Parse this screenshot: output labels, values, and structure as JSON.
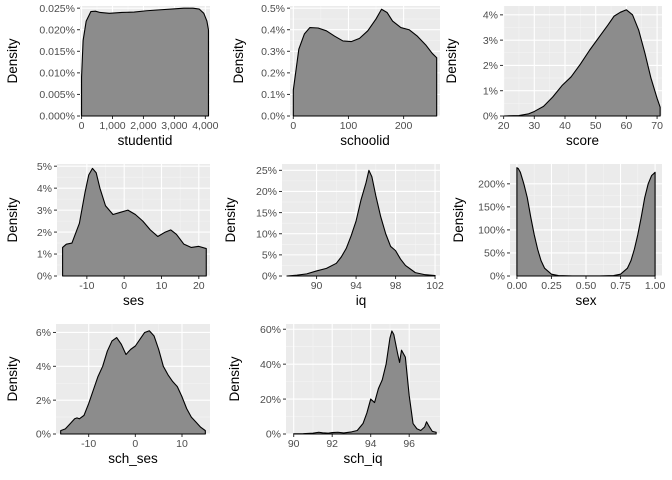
{
  "chart_data": [
    {
      "type": "area",
      "xlabel": "studentid",
      "ylabel": "Density",
      "xlim": [
        -50,
        4150
      ],
      "ylim": [
        0,
        0.000255
      ],
      "xticks": [
        0,
        1000,
        2000,
        3000,
        4000
      ],
      "xtick_labels": [
        "0",
        "1,000",
        "2,000",
        "3,000",
        "4,000"
      ],
      "yticks": [
        0,
        5e-05,
        0.0001,
        0.00015,
        0.0002,
        0.00025
      ],
      "ytick_labels": [
        "0.000%",
        "0.005%",
        "0.010%",
        "0.015%",
        "0.020%",
        "0.025%"
      ],
      "x": [
        0,
        50,
        150,
        300,
        450,
        600,
        900,
        1300,
        1700,
        2100,
        2500,
        2900,
        3300,
        3600,
        3800,
        3950,
        4050,
        4100
      ],
      "y": [
        9e-05,
        0.000175,
        0.00022,
        0.000242,
        0.000243,
        0.00024,
        0.000238,
        0.00024,
        0.000241,
        0.000244,
        0.000246,
        0.000248,
        0.00025,
        0.00025,
        0.000248,
        0.000238,
        0.00022,
        0.0002
      ]
    },
    {
      "type": "area",
      "xlabel": "schoolid",
      "ylabel": "Density",
      "xlim": [
        -6,
        266
      ],
      "ylim": [
        0,
        0.0051
      ],
      "xticks": [
        0,
        100,
        200
      ],
      "xtick_labels": [
        "0",
        "100",
        "200"
      ],
      "yticks": [
        0,
        0.001,
        0.002,
        0.003,
        0.004,
        0.005
      ],
      "ytick_labels": [
        "0.0%",
        "0.1%",
        "0.2%",
        "0.3%",
        "0.4%",
        "0.5%"
      ],
      "x": [
        0,
        10,
        20,
        30,
        45,
        60,
        75,
        90,
        105,
        120,
        135,
        150,
        160,
        170,
        180,
        195,
        210,
        225,
        240,
        252,
        260
      ],
      "y": [
        0.0012,
        0.0031,
        0.0038,
        0.0041,
        0.00408,
        0.00395,
        0.0037,
        0.00348,
        0.00345,
        0.0036,
        0.00395,
        0.0045,
        0.00495,
        0.0048,
        0.0044,
        0.0041,
        0.004,
        0.0037,
        0.0033,
        0.0029,
        0.0027
      ]
    },
    {
      "type": "area",
      "xlabel": "score",
      "ylabel": "Density",
      "xlim": [
        19.8,
        71.6
      ],
      "ylim": [
        0,
        0.0435
      ],
      "xticks": [
        20,
        30,
        40,
        50,
        60,
        70
      ],
      "xtick_labels": [
        "20",
        "30",
        "40",
        "50",
        "60",
        "70"
      ],
      "yticks": [
        0,
        0.01,
        0.02,
        0.03,
        0.04
      ],
      "ytick_labels": [
        "0%",
        "1%",
        "2%",
        "3%",
        "4%"
      ],
      "x": [
        20,
        25,
        28,
        30,
        33,
        36,
        39,
        42,
        45,
        48,
        51,
        54,
        56,
        58,
        60,
        62,
        64,
        66,
        68,
        70,
        71
      ],
      "y": [
        0,
        0.0002,
        0.0008,
        0.0018,
        0.0038,
        0.0075,
        0.012,
        0.0155,
        0.0205,
        0.026,
        0.031,
        0.036,
        0.0395,
        0.041,
        0.042,
        0.04,
        0.034,
        0.025,
        0.015,
        0.007,
        0.0035
      ]
    },
    {
      "type": "area",
      "xlabel": "ses",
      "ylabel": "Density",
      "xlim": [
        -18,
        23
      ],
      "ylim": [
        0,
        0.051
      ],
      "xticks": [
        -10,
        0,
        10,
        20
      ],
      "xtick_labels": [
        "-10",
        "0",
        "10",
        "20"
      ],
      "yticks": [
        0,
        0.01,
        0.02,
        0.03,
        0.04,
        0.05
      ],
      "ytick_labels": [
        "0%",
        "1%",
        "2%",
        "3%",
        "4%",
        "5%"
      ],
      "x": [
        -16.5,
        -15.5,
        -14,
        -12,
        -10.5,
        -9.5,
        -8.5,
        -7.5,
        -6.5,
        -5,
        -3,
        -1,
        1,
        3,
        5,
        7,
        9,
        11,
        12.5,
        14,
        16,
        18,
        20,
        22
      ],
      "y": [
        0.013,
        0.0145,
        0.015,
        0.024,
        0.038,
        0.046,
        0.049,
        0.047,
        0.04,
        0.032,
        0.028,
        0.029,
        0.03,
        0.028,
        0.025,
        0.021,
        0.018,
        0.02,
        0.021,
        0.019,
        0.0145,
        0.013,
        0.0135,
        0.0125
      ]
    },
    {
      "type": "area",
      "xlabel": "iq",
      "ylabel": "Density",
      "xlim": [
        86.5,
        102.5
      ],
      "ylim": [
        0,
        0.265
      ],
      "xticks": [
        90,
        94,
        98,
        102
      ],
      "xtick_labels": [
        "90",
        "94",
        "98",
        "102"
      ],
      "yticks": [
        0,
        0.05,
        0.1,
        0.15,
        0.2,
        0.25
      ],
      "ytick_labels": [
        "0%",
        "5%",
        "10%",
        "15%",
        "20%",
        "25%"
      ],
      "x": [
        87,
        88,
        89,
        90,
        91,
        92,
        92.5,
        93,
        93.5,
        94,
        94.5,
        95,
        95.3,
        95.6,
        96,
        96.5,
        97,
        97.5,
        98,
        98.5,
        99,
        100,
        101,
        102
      ],
      "y": [
        0,
        0.002,
        0.005,
        0.012,
        0.018,
        0.03,
        0.045,
        0.065,
        0.095,
        0.13,
        0.18,
        0.22,
        0.25,
        0.235,
        0.19,
        0.14,
        0.1,
        0.07,
        0.06,
        0.04,
        0.025,
        0.008,
        0.003,
        0.001
      ]
    },
    {
      "type": "area",
      "xlabel": "sex",
      "ylabel": "Density",
      "xlim": [
        -0.05,
        1.05
      ],
      "ylim": [
        0,
        2.43
      ],
      "xticks": [
        0,
        0.25,
        0.5,
        0.75,
        1
      ],
      "xtick_labels": [
        "0.00",
        "0.25",
        "0.50",
        "0.75",
        "1.00"
      ],
      "yticks": [
        0,
        0.5,
        1,
        1.5,
        2
      ],
      "ytick_labels": [
        "0%",
        "50%",
        "100%",
        "150%",
        "200%"
      ],
      "x": [
        0,
        0.01,
        0.025,
        0.05,
        0.075,
        0.1,
        0.125,
        0.15,
        0.175,
        0.2,
        0.25,
        0.3,
        0.4,
        0.5,
        0.6,
        0.7,
        0.75,
        0.8,
        0.825,
        0.85,
        0.875,
        0.9,
        0.925,
        0.95,
        0.975,
        0.99,
        1
      ],
      "y": [
        2.35,
        2.33,
        2.25,
        2.0,
        1.7,
        1.28,
        0.9,
        0.58,
        0.33,
        0.17,
        0.04,
        0.01,
        0.002,
        0.002,
        0.002,
        0.01,
        0.04,
        0.17,
        0.33,
        0.58,
        0.9,
        1.28,
        1.7,
        2.0,
        2.18,
        2.22,
        2.25
      ]
    },
    {
      "type": "area",
      "xlabel": "sch_ses",
      "ylabel": "Density",
      "xlim": [
        -17,
        16
      ],
      "ylim": [
        0,
        0.065
      ],
      "xticks": [
        -10,
        0,
        10
      ],
      "xtick_labels": [
        "-10",
        "0",
        "10"
      ],
      "yticks": [
        0,
        0.02,
        0.04,
        0.06
      ],
      "ytick_labels": [
        "0%",
        "2%",
        "4%",
        "6%"
      ],
      "x": [
        -16,
        -15,
        -14,
        -13,
        -12.5,
        -12,
        -11,
        -10,
        -9,
        -8,
        -7,
        -6,
        -5,
        -4,
        -3,
        -2,
        -1,
        0,
        1,
        2,
        3,
        4,
        5,
        6,
        7,
        8,
        9,
        10,
        11,
        12,
        13,
        14,
        15
      ],
      "y": [
        0.002,
        0.003,
        0.006,
        0.009,
        0.0095,
        0.009,
        0.011,
        0.018,
        0.026,
        0.034,
        0.04,
        0.049,
        0.055,
        0.057,
        0.053,
        0.047,
        0.05,
        0.052,
        0.056,
        0.06,
        0.061,
        0.058,
        0.05,
        0.04,
        0.035,
        0.031,
        0.028,
        0.022,
        0.015,
        0.01,
        0.007,
        0.004,
        0.002
      ]
    },
    {
      "type": "area",
      "xlabel": "sch_iq",
      "ylabel": "Density",
      "xlim": [
        89.6,
        97.6
      ],
      "ylim": [
        0,
        0.63
      ],
      "xticks": [
        90,
        92,
        94,
        96
      ],
      "xtick_labels": [
        "90",
        "92",
        "94",
        "96"
      ],
      "yticks": [
        0,
        0.2,
        0.4,
        0.6
      ],
      "ytick_labels": [
        "0%",
        "20%",
        "40%",
        "60%"
      ],
      "x": [
        90,
        90.5,
        91,
        91.3,
        91.5,
        91.8,
        92,
        92.3,
        92.6,
        93,
        93.3,
        93.6,
        93.8,
        94,
        94.2,
        94.4,
        94.6,
        94.8,
        95,
        95.1,
        95.2,
        95.4,
        95.5,
        95.6,
        95.8,
        96,
        96.2,
        96.4,
        96.6,
        96.8,
        96.9,
        97,
        97.2,
        97.4
      ],
      "y": [
        0.001,
        0.002,
        0.005,
        0.01,
        0.007,
        0.005,
        0.008,
        0.01,
        0.006,
        0.012,
        0.02,
        0.06,
        0.12,
        0.2,
        0.18,
        0.26,
        0.31,
        0.4,
        0.55,
        0.59,
        0.57,
        0.46,
        0.41,
        0.48,
        0.44,
        0.22,
        0.06,
        0.03,
        0.02,
        0.04,
        0.07,
        0.05,
        0.015,
        0.01
      ]
    }
  ]
}
